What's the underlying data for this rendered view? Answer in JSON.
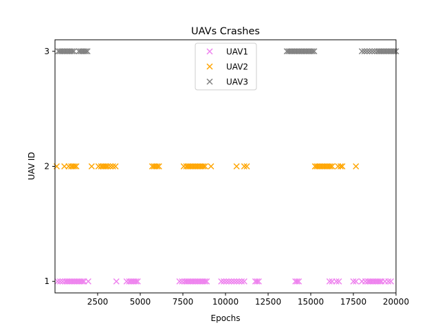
{
  "chart_data": {
    "type": "scatter",
    "title": "UAVs Crashes",
    "xlabel": "Epochs",
    "ylabel": "UAV ID",
    "xlim": [
      0,
      20000
    ],
    "ylim": [
      0.9,
      3.1
    ],
    "xticks": [
      2500,
      5000,
      7500,
      10000,
      12500,
      15000,
      17500,
      20000
    ],
    "xtick_labels": [
      "2500",
      "5000",
      "7500",
      "10000",
      "12500",
      "15000",
      "17500",
      "20000"
    ],
    "yticks": [
      1,
      2,
      3
    ],
    "ytick_labels": [
      "1",
      "2",
      "3"
    ],
    "grid": false,
    "legend_position": "top-center",
    "marker": "x",
    "series": [
      {
        "name": "UAV1",
        "color": "#ee82ee",
        "y": 1,
        "x": [
          150,
          300,
          450,
          600,
          700,
          800,
          900,
          1000,
          1100,
          1200,
          1300,
          1400,
          1500,
          1600,
          1700,
          1950,
          3600,
          4200,
          4350,
          4450,
          4550,
          4650,
          4750,
          4850,
          7300,
          7450,
          7600,
          7700,
          7800,
          7900,
          8000,
          8100,
          8200,
          8300,
          8400,
          8500,
          8600,
          8700,
          8800,
          8900,
          9750,
          9900,
          10050,
          10200,
          10350,
          10500,
          10650,
          10800,
          10950,
          11100,
          11750,
          11850,
          11950,
          14100,
          14200,
          14300,
          16100,
          16250,
          16500,
          16650,
          17500,
          17650,
          18000,
          18200,
          18350,
          18450,
          18550,
          18650,
          18750,
          18850,
          18950,
          19050,
          19150,
          19350,
          19550,
          19700
        ]
      },
      {
        "name": "UAV2",
        "color": "#ffa500",
        "y": 2,
        "x": [
          100,
          550,
          800,
          950,
          1050,
          1150,
          1250,
          2150,
          2550,
          2700,
          2800,
          2900,
          3000,
          3100,
          3250,
          3400,
          3550,
          5700,
          5800,
          5900,
          6000,
          6100,
          7550,
          7700,
          7800,
          7900,
          8000,
          8100,
          8200,
          8300,
          8400,
          8500,
          8600,
          8700,
          8800,
          9150,
          10650,
          11100,
          11250,
          15250,
          15350,
          15450,
          15550,
          15650,
          15750,
          15850,
          15950,
          16050,
          16150,
          16250,
          16600,
          16750,
          16850,
          17650
        ]
      },
      {
        "name": "UAV3",
        "color": "#808080",
        "y": 3,
        "x": [
          200,
          300,
          400,
          500,
          600,
          700,
          800,
          900,
          1000,
          1100,
          1400,
          1500,
          1600,
          1700,
          1800,
          1900,
          13600,
          13700,
          13800,
          13900,
          14000,
          14100,
          14200,
          14300,
          14400,
          14500,
          14600,
          14700,
          14800,
          14900,
          15000,
          15100,
          15200,
          18000,
          18150,
          18300,
          18450,
          18600,
          18750,
          18900,
          19000,
          19100,
          19200,
          19300,
          19400,
          19500,
          19600,
          19700,
          19800,
          19900,
          20000
        ]
      }
    ]
  }
}
